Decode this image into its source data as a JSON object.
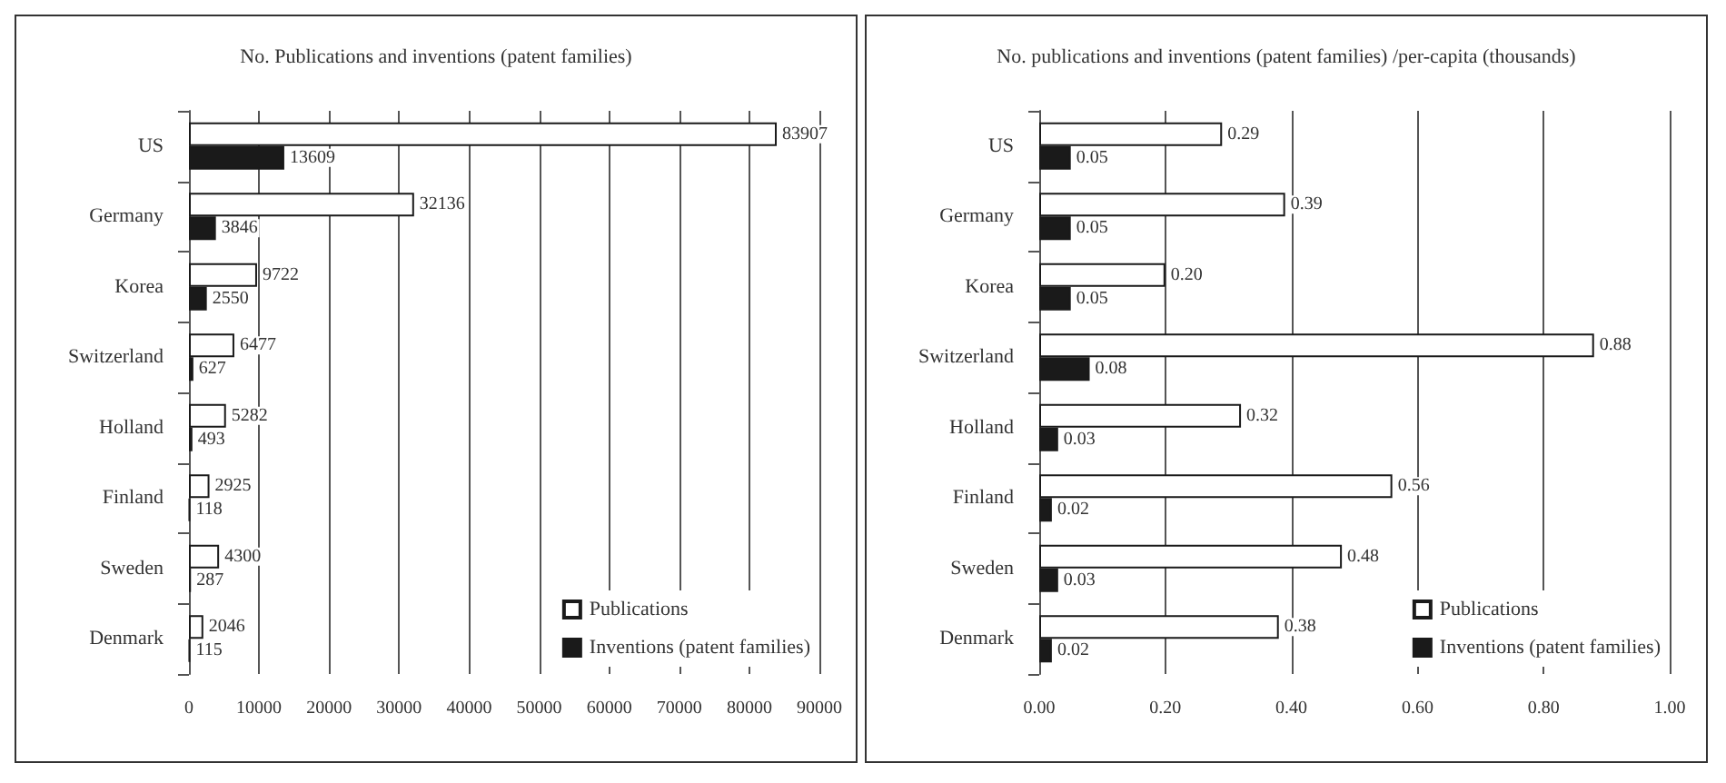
{
  "chart_data": [
    {
      "type": "bar",
      "orientation": "horizontal",
      "title": "No. Publications and inventions (patent families)",
      "categories": [
        "US",
        "Germany",
        "Korea",
        "Switzerland",
        "Holland",
        "Finland",
        "Sweden",
        "Denmark"
      ],
      "series": [
        {
          "name": "Publications",
          "color": "#ffffff",
          "values": [
            83907,
            32136,
            9722,
            6477,
            5282,
            2925,
            4300,
            2046
          ]
        },
        {
          "name": "Inventions (patent families)",
          "color": "#1a1a1a",
          "values": [
            13609,
            3846,
            2550,
            627,
            493,
            118,
            287,
            115
          ]
        }
      ],
      "xlim": [
        0,
        90000
      ],
      "xticks": [
        0,
        10000,
        20000,
        30000,
        40000,
        50000,
        60000,
        70000,
        80000,
        90000
      ],
      "grid": "x",
      "legend": "bottom right",
      "data_labels": true
    },
    {
      "type": "bar",
      "orientation": "horizontal",
      "title": "No. publications and inventions (patent families) /per-capita (thousands)",
      "categories": [
        "US",
        "Germany",
        "Korea",
        "Switzerland",
        "Holland",
        "Finland",
        "Sweden",
        "Denmark"
      ],
      "series": [
        {
          "name": "Publications",
          "color": "#ffffff",
          "values": [
            0.29,
            0.39,
            0.2,
            0.88,
            0.32,
            0.56,
            0.48,
            0.38
          ],
          "value_labels": [
            "0.29",
            "0.39",
            "0.20",
            "0.88",
            "0.32",
            "0.56",
            "0.48",
            "0.38"
          ]
        },
        {
          "name": "Inventions (patent families)",
          "color": "#1a1a1a",
          "values": [
            0.05,
            0.05,
            0.05,
            0.08,
            0.03,
            0.02,
            0.03,
            0.02
          ],
          "value_labels": [
            "0.05",
            "0.05",
            "0.05",
            "0.08",
            "0.03",
            "0.02",
            "0.03",
            "0.02"
          ]
        }
      ],
      "xlim": [
        0,
        1
      ],
      "xticks": [
        {
          "value": 0,
          "label": "0.00"
        },
        {
          "value": 0.2,
          "label": "0.20"
        },
        {
          "value": 0.4,
          "label": "0.40"
        },
        {
          "value": 0.6,
          "label": "0.60"
        },
        {
          "value": 0.8,
          "label": "0.80"
        },
        {
          "value": 1,
          "label": "1.00"
        }
      ],
      "grid": "x",
      "legend": "bottom right"
    }
  ]
}
